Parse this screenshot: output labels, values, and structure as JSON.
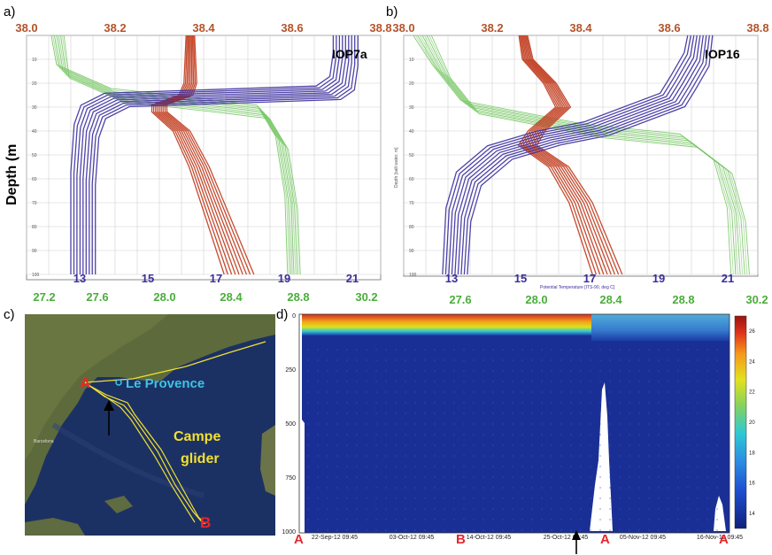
{
  "colors": {
    "salinity": "#c0391b",
    "temperature": "#3b2f9e",
    "density": "#6ec35a",
    "salinity_tick": "#b4532a",
    "density_tick": "#4aae3a",
    "map_A": "#e8262c",
    "map_provence": "#3ec3e8",
    "map_glider": "#f2e030"
  },
  "panels": {
    "a": {
      "label": "a)",
      "title": "IOP7a",
      "ylabel": "Depth (m"
    },
    "b": {
      "label": "b)",
      "title": "IOP16",
      "tiny_ylabel": "Depth [salt water, m]",
      "tiny_xlabel": "Potential Temperature [ITS-90, deg C]"
    },
    "c": {
      "label": "c)",
      "A": "A",
      "B": "B",
      "provence": "Le Provence",
      "campe": "Campe",
      "glider": "glider",
      "place1": "Barcelona"
    },
    "d": {
      "label": "d)",
      "markers": [
        "A",
        "B",
        "A",
        "A"
      ]
    }
  },
  "chart_data": [
    {
      "type": "line",
      "panel": "a",
      "title": "IOP7a",
      "ylabel": "Depth (m",
      "top_axis_ticks": [
        "38.0",
        "38.2",
        "38.4",
        "38.6",
        "38.8"
      ],
      "bottom_axis_ticks": [
        "13",
        "15",
        "17",
        "19",
        "21"
      ],
      "density_axis_ticks": [
        "27.2",
        "27.6",
        "28.0",
        "28.4",
        "28.8",
        "30.2"
      ],
      "depth_ticks": [
        "10",
        "20",
        "30",
        "40",
        "50",
        "60",
        "70",
        "80",
        "90",
        "100"
      ],
      "ylim": [
        0,
        100
      ],
      "series": [
        {
          "color": "#c0391b",
          "axis": "salinity",
          "x": [
            38.37,
            38.37,
            38.37,
            38.36,
            38.3,
            38.3,
            38.35,
            38.39,
            38.42,
            38.45,
            38.48
          ],
          "y": [
            0,
            10,
            20,
            25,
            29,
            32,
            40,
            55,
            70,
            85,
            100
          ]
        },
        {
          "color": "#3b2f9e",
          "axis": "temperature",
          "x": [
            20.8,
            20.8,
            20.7,
            20.3,
            14.1,
            13.4,
            13.2,
            13.1,
            13.1
          ],
          "y": [
            0,
            10,
            20,
            24,
            27,
            32,
            40,
            60,
            100
          ]
        },
        {
          "color": "#6ec35a",
          "axis": "density",
          "x": [
            27.3,
            27.34,
            27.75,
            28.4,
            28.85,
            28.99,
            29.06,
            29.08
          ],
          "y": [
            0,
            15,
            25,
            29,
            32,
            45,
            70,
            100
          ]
        }
      ]
    },
    {
      "type": "line",
      "panel": "b",
      "title": "IOP16",
      "top_axis_ticks": [
        "38.0",
        "38.2",
        "38.4",
        "38.6",
        "38.8"
      ],
      "bottom_axis_ticks": [
        "13",
        "15",
        "17",
        "19",
        "21"
      ],
      "density_axis_ticks": [
        "27.6",
        "28.0",
        "28.4",
        "28.8",
        "30.2"
      ],
      "depth_ticks": [
        "10",
        "20",
        "30",
        "40",
        "50",
        "60",
        "70",
        "80",
        "90",
        "100"
      ],
      "ylim": [
        0,
        100
      ],
      "series": [
        {
          "color": "#c0391b",
          "axis": "salinity",
          "x": [
            38.27,
            38.28,
            38.33,
            38.36,
            38.3,
            38.28,
            38.35,
            38.4,
            38.43,
            38.46
          ],
          "y": [
            0,
            10,
            20,
            30,
            40,
            46,
            55,
            70,
            85,
            100
          ]
        },
        {
          "color": "#3b2f9e",
          "axis": "temperature",
          "x": [
            20.2,
            20.1,
            19.7,
            19.4,
            17.2,
            15.8,
            14.4,
            13.5,
            13.2,
            13.1
          ],
          "y": [
            0,
            10,
            20,
            27,
            39,
            43,
            49,
            60,
            75,
            100
          ]
        },
        {
          "color": "#6ec35a",
          "axis": "density",
          "x": [
            27.4,
            27.5,
            27.65,
            28.3,
            28.8,
            28.98,
            29.05,
            29.07
          ],
          "y": [
            0,
            15,
            30,
            40,
            44,
            55,
            75,
            100
          ]
        }
      ]
    },
    {
      "type": "heatmap",
      "panel": "d",
      "x_ticks": [
        "22-Sep-12 09:45",
        "03-Oct-12 09:45",
        "14-Oct-12 09:45",
        "25-Oct-12 09:45",
        "05-Nov-12 09:45",
        "16-Nov-12 09:45"
      ],
      "y_ticks": [
        "0",
        "250",
        "500",
        "750",
        "1000"
      ],
      "ylim": [
        1000,
        0
      ],
      "colorbar_ticks": [
        "14",
        "16",
        "18",
        "20",
        "22",
        "24",
        "26"
      ],
      "colorbar_range": [
        13,
        27
      ]
    }
  ]
}
